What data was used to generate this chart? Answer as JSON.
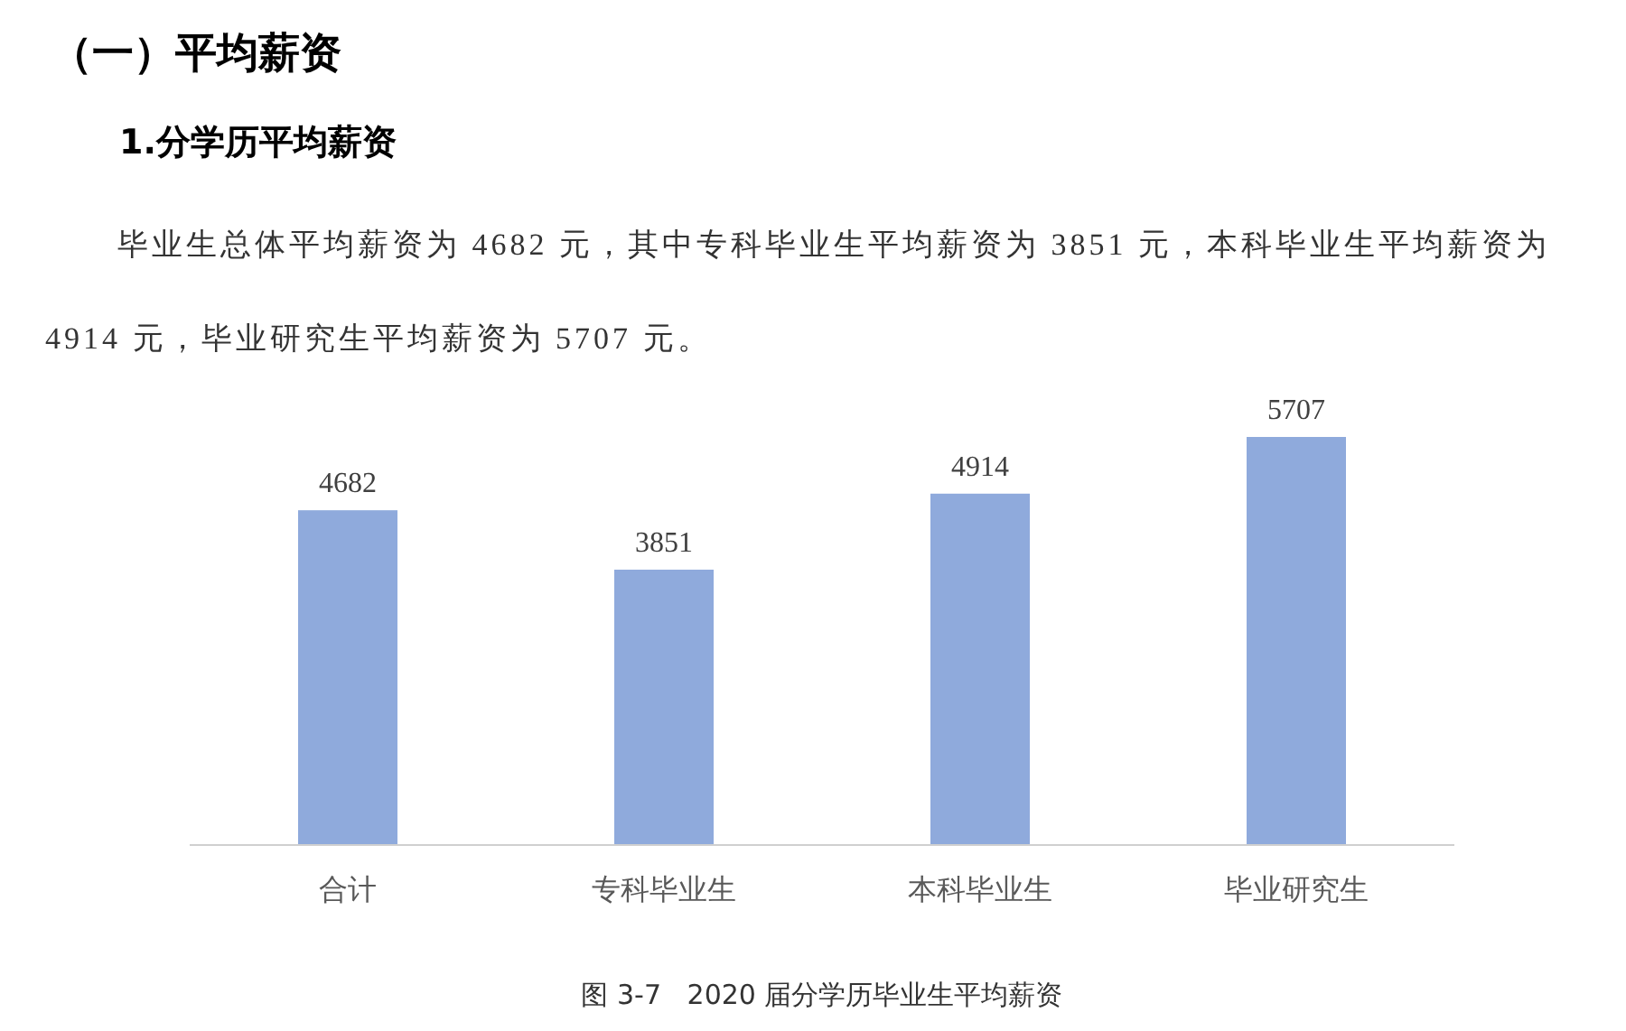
{
  "chart_data": {
    "type": "bar",
    "title": "（一）平均薪资",
    "subtitle": "1.分学历平均薪资",
    "annotations": [
      "毕业生总体平均薪资为 4682 元，其中专科毕业生平均薪资为 3851 元，本科毕业生平均薪资为 4914 元，毕业研究生平均薪资为 5707 元。",
      "图 3-7   2020 届分学历毕业生平均薪资"
    ],
    "categories": [
      "合计",
      "专科毕业生",
      "本科毕业生",
      "毕业研究生"
    ],
    "values": [
      4682,
      3851,
      4914,
      5707
    ],
    "color": "#8faadc",
    "data_labels": true,
    "grid": false
  }
}
